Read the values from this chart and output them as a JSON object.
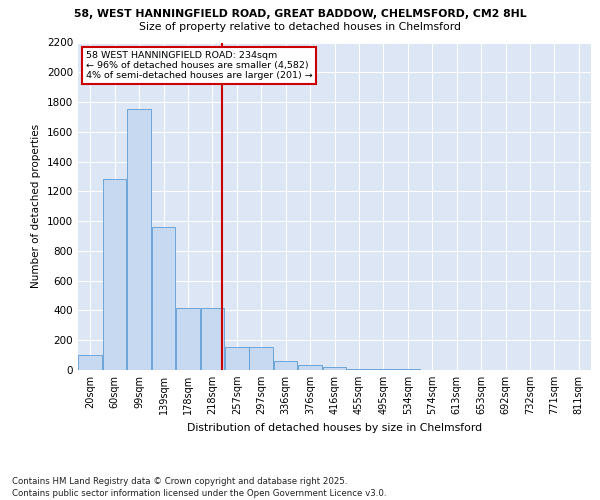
{
  "title1": "58, WEST HANNINGFIELD ROAD, GREAT BADDOW, CHELMSFORD, CM2 8HL",
  "title2": "Size of property relative to detached houses in Chelmsford",
  "xlabel": "Distribution of detached houses by size in Chelmsford",
  "ylabel": "Number of detached properties",
  "bin_labels": [
    "20sqm",
    "60sqm",
    "99sqm",
    "139sqm",
    "178sqm",
    "218sqm",
    "257sqm",
    "297sqm",
    "336sqm",
    "376sqm",
    "416sqm",
    "455sqm",
    "495sqm",
    "534sqm",
    "574sqm",
    "613sqm",
    "653sqm",
    "692sqm",
    "732sqm",
    "771sqm",
    "811sqm"
  ],
  "bar_heights": [
    100,
    1280,
    1750,
    960,
    415,
    415,
    155,
    155,
    60,
    35,
    20,
    10,
    7,
    4,
    3,
    2,
    1,
    1,
    1,
    1,
    0
  ],
  "bar_color": "#c6d9f0",
  "bar_edgecolor": "#5b9bd5",
  "property_label": "58 WEST HANNINGFIELD ROAD: 234sqm",
  "annotation_line1": "← 96% of detached houses are smaller (4,582)",
  "annotation_line2": "4% of semi-detached houses are larger (201) →",
  "vline_color": "#cc0000",
  "annotation_box_color": "#ffffff",
  "annotation_box_edgecolor": "#cc0000",
  "ylim": [
    0,
    2200
  ],
  "yticks": [
    0,
    200,
    400,
    600,
    800,
    1000,
    1200,
    1400,
    1600,
    1800,
    2000,
    2200
  ],
  "background_color": "#dce6f5",
  "grid_color": "#ffffff",
  "footer_line1": "Contains HM Land Registry data © Crown copyright and database right 2025.",
  "footer_line2": "Contains public sector information licensed under the Open Government Licence v3.0.",
  "vline_x": 5.41
}
